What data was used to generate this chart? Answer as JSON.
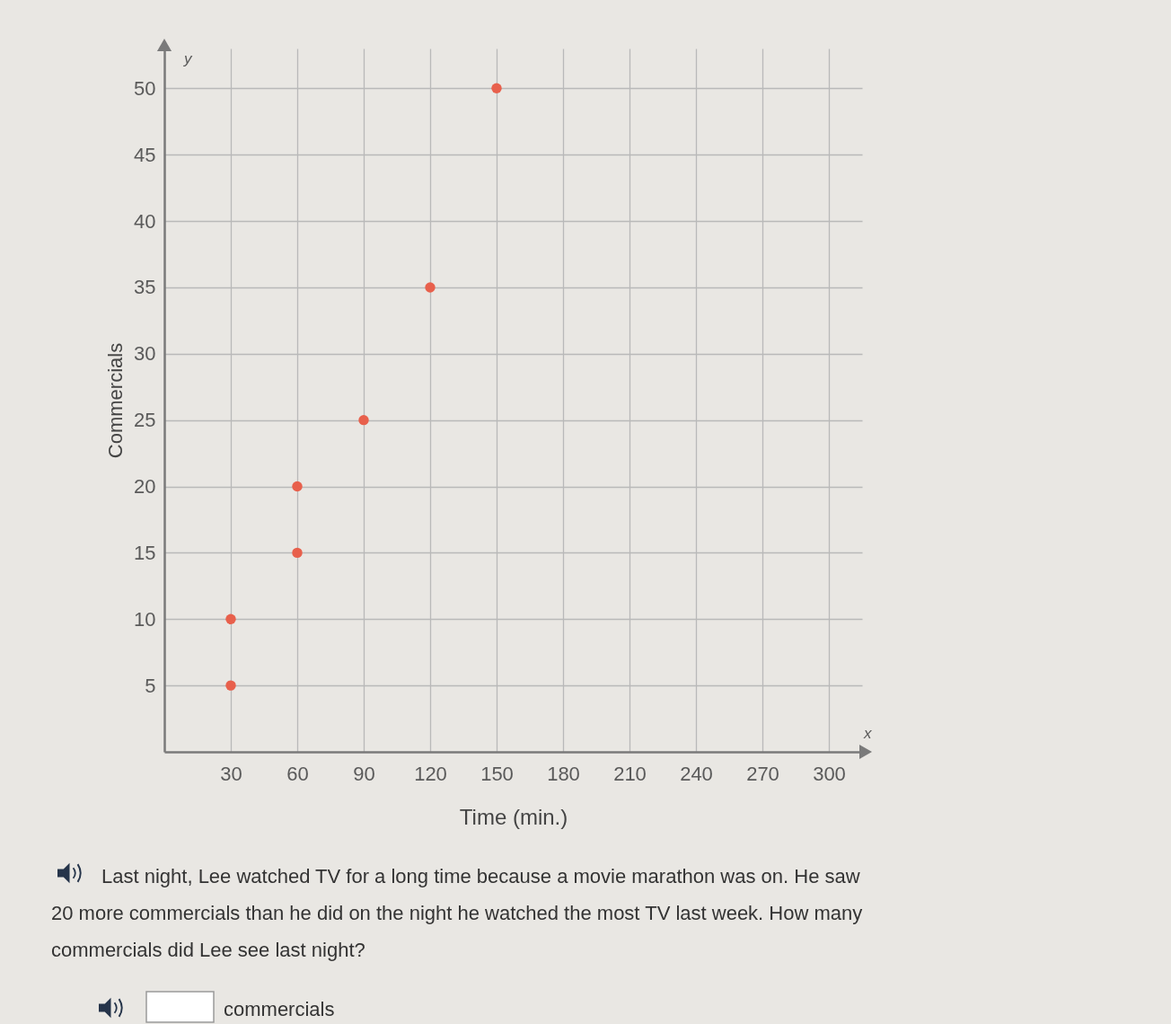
{
  "chart_data": {
    "type": "scatter",
    "xlabel": "Time (min.)",
    "ylabel": "Commercials",
    "x": [
      30,
      30,
      60,
      60,
      90,
      120,
      150
    ],
    "values": [
      5,
      10,
      15,
      20,
      25,
      35,
      50
    ],
    "color": "#e8604c",
    "marker": "circle",
    "xlim": [
      0,
      315
    ],
    "ylim": [
      0,
      53
    ],
    "xticks": [
      30,
      60,
      90,
      120,
      150,
      180,
      210,
      240,
      270,
      300
    ],
    "yticks": [
      5,
      10,
      15,
      20,
      25,
      30,
      35,
      40,
      45,
      50
    ],
    "grid": true,
    "annotations": [
      "y",
      "x",
      "Last night, Lee watched TV for a long time because a movie marathon was on. He saw 20 more commercials than he did on the night he watched the most TV last week. How many commercials did Lee see last night?",
      "commercials"
    ]
  }
}
